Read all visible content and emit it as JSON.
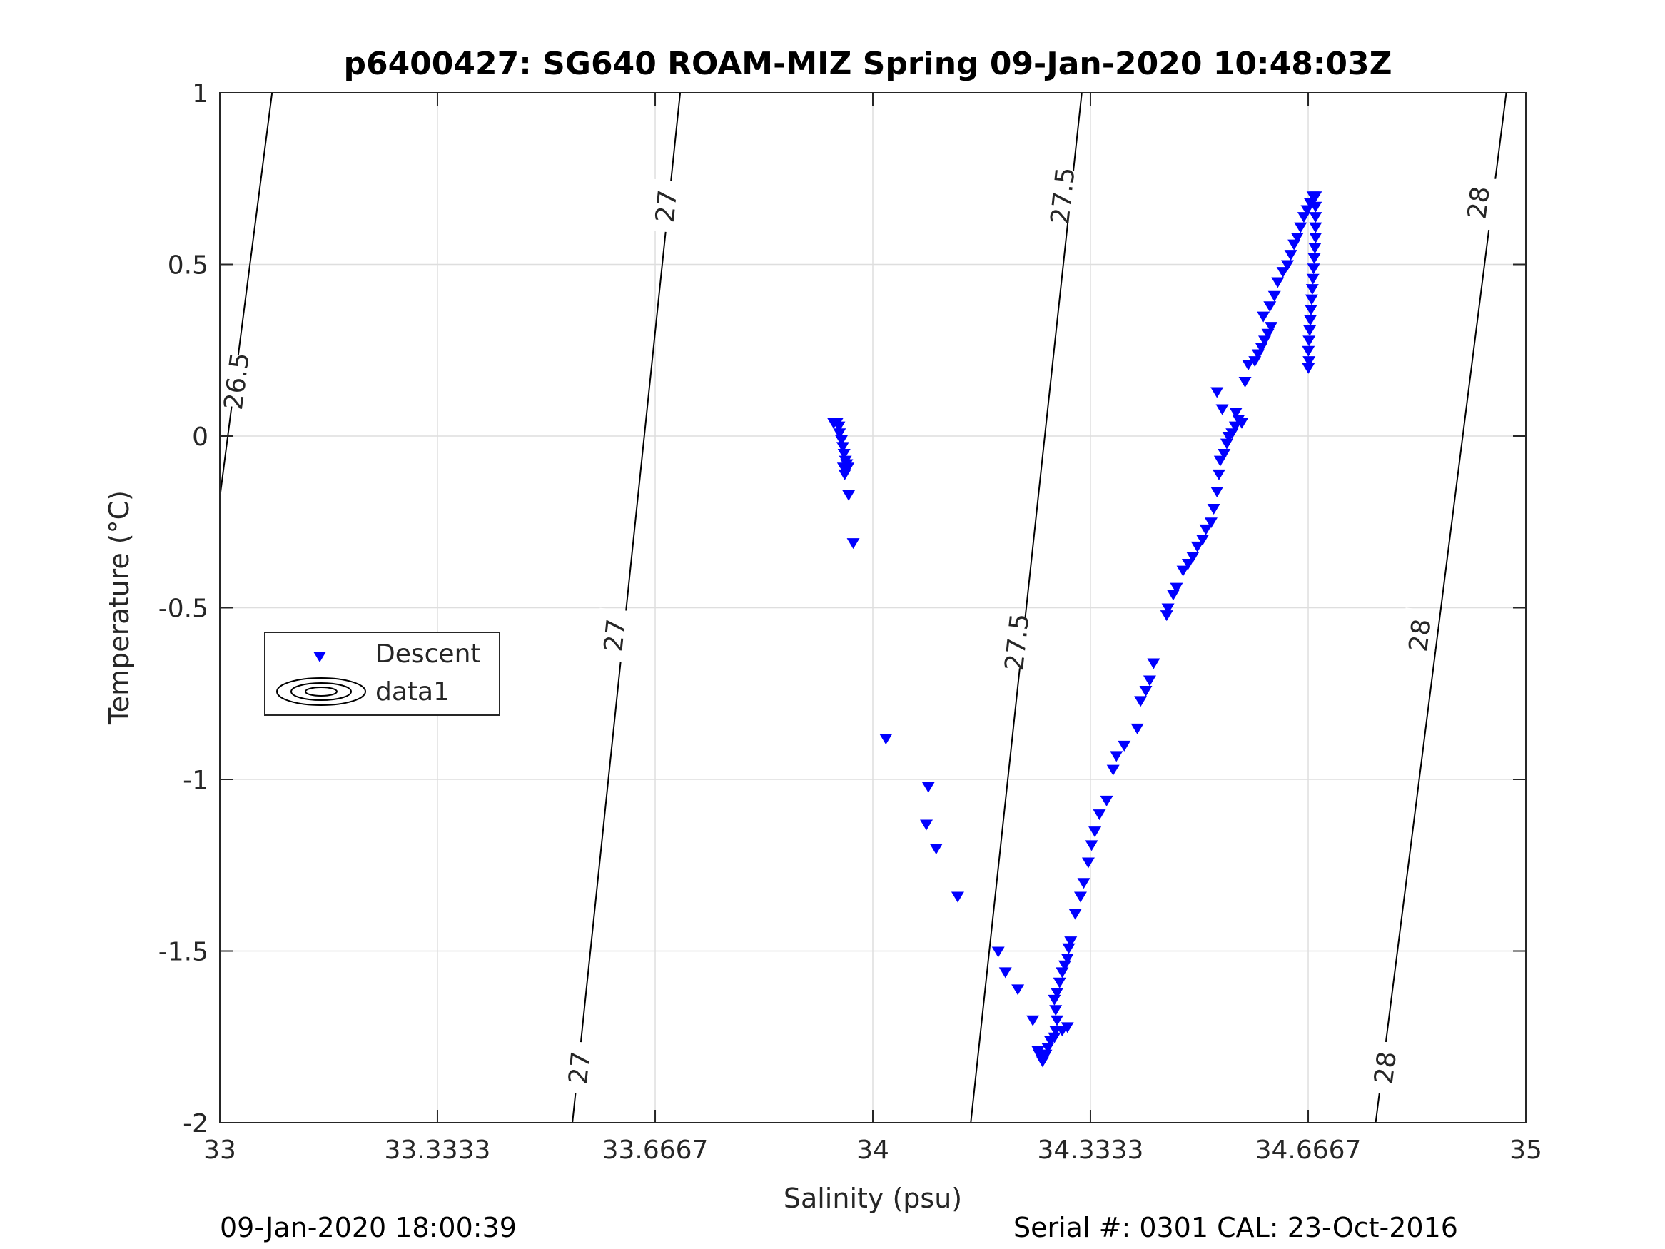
{
  "chart_data": {
    "type": "scatter",
    "title": "p6400427: SG640 ROAM-MIZ Spring 09-Jan-2020 10:48:03Z",
    "xlabel": "Salinity (psu)",
    "ylabel": "Temperature (°C)",
    "xlim": [
      33,
      35
    ],
    "ylim": [
      -2,
      1
    ],
    "xticks": [
      33,
      33.3333,
      33.6667,
      34,
      34.3333,
      34.6667,
      35
    ],
    "xtick_labels": [
      "33",
      "33.3333",
      "33.6667",
      "34",
      "34.3333",
      "34.6667",
      "35"
    ],
    "yticks": [
      -2,
      -1.5,
      -1,
      -0.5,
      0,
      0.5,
      1
    ],
    "ytick_labels": [
      "-2",
      "-1.5",
      "-1",
      "-0.5",
      "0",
      "0.5",
      "1"
    ],
    "grid": true,
    "legend": {
      "position": "left-middle",
      "entries": [
        {
          "label": "Descent",
          "marker": "triangle-down",
          "color": "#0000ff"
        },
        {
          "label": "data1",
          "marker": "contour",
          "color": "#000000"
        }
      ]
    },
    "series": [
      {
        "name": "Descent",
        "marker": "triangle-down",
        "color": "#0000ff",
        "points": [
          [
            33.94,
            0.04
          ],
          [
            33.945,
            0.04
          ],
          [
            33.948,
            0.03
          ],
          [
            33.949,
            0.01
          ],
          [
            33.952,
            -0.01
          ],
          [
            33.954,
            -0.03
          ],
          [
            33.956,
            -0.05
          ],
          [
            33.958,
            -0.07
          ],
          [
            33.96,
            -0.08
          ],
          [
            33.955,
            -0.09
          ],
          [
            33.962,
            -0.09
          ],
          [
            33.957,
            -0.11
          ],
          [
            33.963,
            -0.17
          ],
          [
            33.97,
            -0.31
          ],
          [
            34.02,
            -0.88
          ],
          [
            34.085,
            -1.02
          ],
          [
            34.082,
            -1.13
          ],
          [
            34.097,
            -1.2
          ],
          [
            34.13,
            -1.34
          ],
          [
            34.192,
            -1.5
          ],
          [
            34.203,
            -1.56
          ],
          [
            34.222,
            -1.61
          ],
          [
            34.245,
            -1.7
          ],
          [
            34.253,
            -1.79
          ],
          [
            34.255,
            -1.8
          ],
          [
            34.258,
            -1.81
          ],
          [
            34.26,
            -1.82
          ],
          [
            34.262,
            -1.81
          ],
          [
            34.265,
            -1.8
          ],
          [
            34.268,
            -1.78
          ],
          [
            34.272,
            -1.76
          ],
          [
            34.278,
            -1.75
          ],
          [
            34.28,
            -1.73
          ],
          [
            34.29,
            -1.73
          ],
          [
            34.298,
            -1.72
          ],
          [
            34.282,
            -1.7
          ],
          [
            34.28,
            -1.67
          ],
          [
            34.278,
            -1.64
          ],
          [
            34.282,
            -1.62
          ],
          [
            34.286,
            -1.59
          ],
          [
            34.29,
            -1.56
          ],
          [
            34.294,
            -1.54
          ],
          [
            34.298,
            -1.52
          ],
          [
            34.3,
            -1.49
          ],
          [
            34.303,
            -1.47
          ],
          [
            34.31,
            -1.39
          ],
          [
            34.318,
            -1.34
          ],
          [
            34.323,
            -1.3
          ],
          [
            34.33,
            -1.24
          ],
          [
            34.335,
            -1.19
          ],
          [
            34.34,
            -1.15
          ],
          [
            34.347,
            -1.1
          ],
          [
            34.358,
            -1.06
          ],
          [
            34.368,
            -0.97
          ],
          [
            34.373,
            -0.93
          ],
          [
            34.385,
            -0.9
          ],
          [
            34.405,
            -0.85
          ],
          [
            34.41,
            -0.77
          ],
          [
            34.418,
            -0.74
          ],
          [
            34.424,
            -0.71
          ],
          [
            34.43,
            -0.66
          ],
          [
            34.45,
            -0.52
          ],
          [
            34.452,
            -0.5
          ],
          [
            34.46,
            -0.46
          ],
          [
            34.465,
            -0.44
          ],
          [
            34.475,
            -0.39
          ],
          [
            34.483,
            -0.37
          ],
          [
            34.49,
            -0.35
          ],
          [
            34.497,
            -0.32
          ],
          [
            34.505,
            -0.3
          ],
          [
            34.51,
            -0.27
          ],
          [
            34.518,
            -0.25
          ],
          [
            34.522,
            -0.21
          ],
          [
            34.527,
            -0.16
          ],
          [
            34.53,
            -0.11
          ],
          [
            34.532,
            -0.07
          ],
          [
            34.538,
            -0.05
          ],
          [
            34.542,
            -0.02
          ],
          [
            34.545,
            0.0
          ],
          [
            34.55,
            0.01
          ],
          [
            34.555,
            0.03
          ],
          [
            34.56,
            0.05
          ],
          [
            34.565,
            0.04
          ],
          [
            34.556,
            0.07
          ],
          [
            34.527,
            0.13
          ],
          [
            34.535,
            0.08
          ],
          [
            34.57,
            0.16
          ],
          [
            34.575,
            0.21
          ],
          [
            34.585,
            0.22
          ],
          [
            34.59,
            0.24
          ],
          [
            34.595,
            0.26
          ],
          [
            34.6,
            0.28
          ],
          [
            34.605,
            0.3
          ],
          [
            34.61,
            0.32
          ],
          [
            34.598,
            0.35
          ],
          [
            34.608,
            0.38
          ],
          [
            34.615,
            0.41
          ],
          [
            34.62,
            0.45
          ],
          [
            34.628,
            0.48
          ],
          [
            34.635,
            0.5
          ],
          [
            34.64,
            0.53
          ],
          [
            34.645,
            0.56
          ],
          [
            34.65,
            0.58
          ],
          [
            34.655,
            0.61
          ],
          [
            34.66,
            0.64
          ],
          [
            34.665,
            0.66
          ],
          [
            34.67,
            0.68
          ],
          [
            34.674,
            0.7
          ],
          [
            34.667,
            0.2
          ],
          [
            34.668,
            0.22
          ],
          [
            34.667,
            0.25
          ],
          [
            34.668,
            0.28
          ],
          [
            34.669,
            0.31
          ],
          [
            34.67,
            0.34
          ],
          [
            34.671,
            0.37
          ],
          [
            34.672,
            0.4
          ],
          [
            34.673,
            0.43
          ],
          [
            34.674,
            0.46
          ],
          [
            34.675,
            0.49
          ],
          [
            34.676,
            0.52
          ],
          [
            34.677,
            0.55
          ],
          [
            34.678,
            0.58
          ],
          [
            34.678,
            0.61
          ],
          [
            34.678,
            0.64
          ],
          [
            34.678,
            0.67
          ],
          [
            34.678,
            0.7
          ]
        ]
      }
    ],
    "contours": [
      {
        "label": "26.5",
        "x": [
          33.0,
          33.08
        ],
        "y": [
          -0.18,
          1.0
        ],
        "label_at": [
          [
            33.025,
            0.16
          ]
        ]
      },
      {
        "label": "27",
        "x": [
          33.54,
          33.705
        ],
        "y": [
          -2.0,
          1.0
        ],
        "label_at": [
          [
            33.55,
            -1.84
          ],
          [
            33.604,
            -0.58
          ],
          [
            33.683,
            0.67
          ]
        ]
      },
      {
        "label": "27.5",
        "x": [
          34.15,
          34.32
        ],
        "y": [
          -2.0,
          1.0
        ],
        "label_at": [
          [
            34.22,
            -0.6
          ],
          [
            34.29,
            0.7
          ]
        ]
      },
      {
        "label": "28",
        "x": [
          34.77,
          34.97
        ],
        "y": [
          -2.0,
          1.0
        ],
        "label_at": [
          [
            34.784,
            -1.84
          ],
          [
            34.837,
            -0.58
          ],
          [
            34.927,
            0.68
          ]
        ]
      }
    ]
  },
  "footer": {
    "timestamp": "09-Jan-2020 18:00:39",
    "serial": "Serial #: 0301  CAL: 23-Oct-2016"
  }
}
